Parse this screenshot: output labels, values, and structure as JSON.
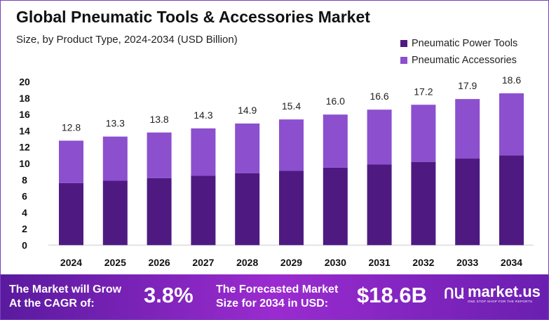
{
  "colors": {
    "power": "#4e1a82",
    "accessories": "#8c4fce",
    "banner": "#8a28c8"
  },
  "chart_data": {
    "type": "bar",
    "stacked": true,
    "title": "Global Pneumatic Tools & Accessories Market",
    "subtitle": "Size, by Product Type, 2024-2034 (USD Billion)",
    "categories": [
      "2024",
      "2025",
      "2026",
      "2027",
      "2028",
      "2029",
      "2030",
      "2031",
      "2032",
      "2033",
      "2034"
    ],
    "series": [
      {
        "name": "Pneumatic Power Tools",
        "values": [
          7.6,
          7.9,
          8.2,
          8.5,
          8.8,
          9.1,
          9.5,
          9.9,
          10.2,
          10.6,
          11.0
        ]
      },
      {
        "name": "Pneumatic Accessories",
        "values": [
          5.2,
          5.4,
          5.6,
          5.8,
          6.1,
          6.3,
          6.5,
          6.7,
          7.0,
          7.3,
          7.6
        ]
      }
    ],
    "totals": [
      "12.8",
      "13.3",
      "13.8",
      "14.3",
      "14.9",
      "15.4",
      "16.0",
      "16.6",
      "17.2",
      "17.9",
      "18.6"
    ],
    "ylim": [
      0,
      20
    ],
    "yticks": [
      "0",
      "2",
      "4",
      "6",
      "8",
      "10",
      "12",
      "14",
      "16",
      "18",
      "20"
    ],
    "grid": false,
    "legend": "top-right"
  },
  "banner": {
    "cagr_label": "The Market will Grow At the CAGR of:",
    "cagr_value": "3.8%",
    "forecast_label": "The Forecasted Market Size for 2034 in USD:",
    "forecast_value": "$18.6B",
    "logo_name": "market.us",
    "logo_tagline": "ONE STOP SHOP FOR THE REPORTS"
  }
}
